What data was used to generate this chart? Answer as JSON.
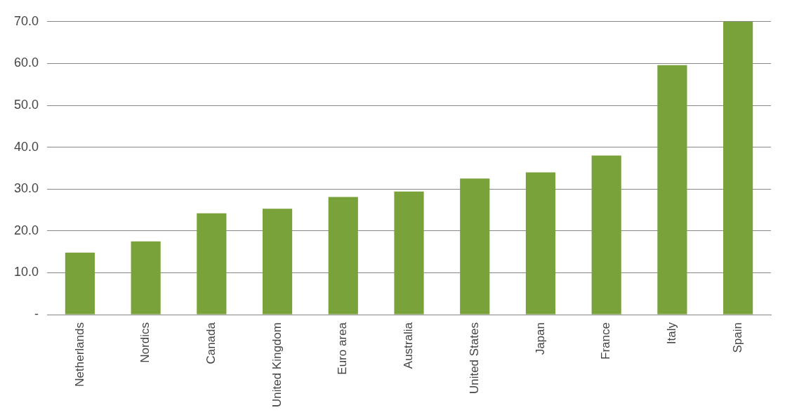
{
  "chart_data": {
    "type": "bar",
    "categories": [
      "Netherlands",
      "Nordics",
      "Canada",
      "United Kingdom",
      "Euro area",
      "Australia",
      "United States",
      "Japan",
      "France",
      "Italy",
      "Spain"
    ],
    "values": [
      14.8,
      17.5,
      24.2,
      25.3,
      28.1,
      29.4,
      32.5,
      34.0,
      38.0,
      59.6,
      70.0
    ],
    "color": "#7aa23a",
    "ylim": [
      0,
      70
    ],
    "yticks": [
      {
        "value": 0,
        "label": "-"
      },
      {
        "value": 10,
        "label": "10.0"
      },
      {
        "value": 20,
        "label": "20.0"
      },
      {
        "value": 30,
        "label": "30.0"
      },
      {
        "value": 40,
        "label": "40.0"
      },
      {
        "value": 50,
        "label": "50.0"
      },
      {
        "value": 60,
        "label": "60.0"
      },
      {
        "value": 70,
        "label": "70.0"
      }
    ],
    "grid": "y"
  }
}
